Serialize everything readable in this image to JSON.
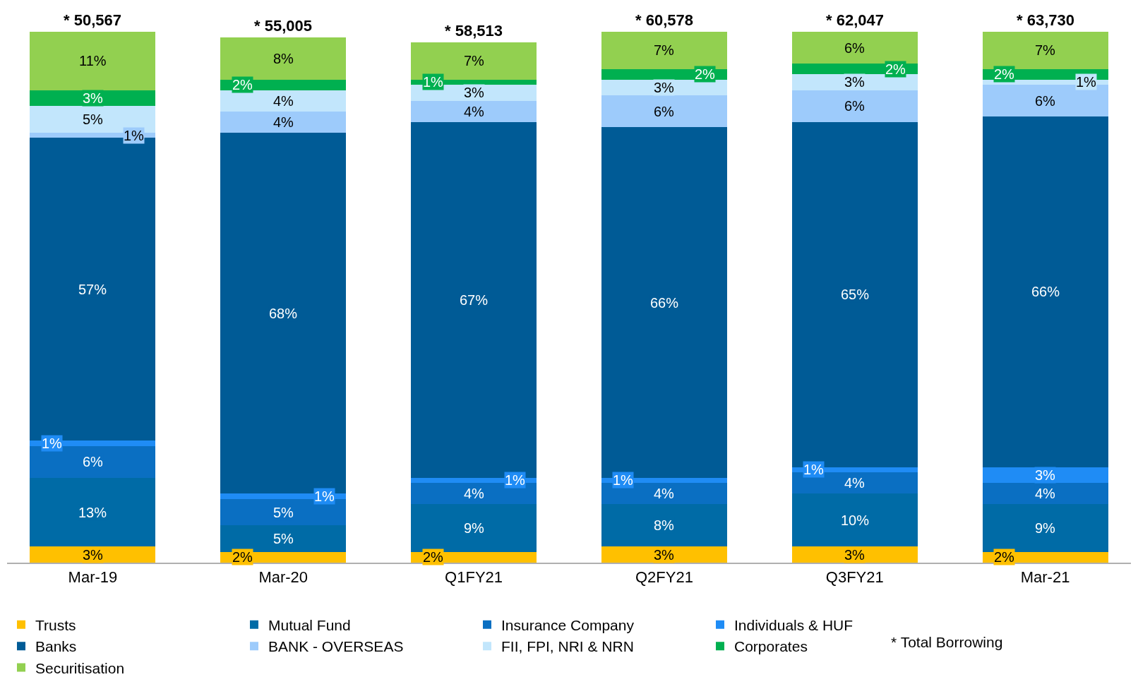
{
  "chart_data": {
    "type": "bar",
    "stacked": true,
    "categories": [
      "Mar-19",
      "Mar-20",
      "Q1FY21",
      "Q2FY21",
      "Q3FY21",
      "Mar-21"
    ],
    "series": [
      {
        "name": "Trusts",
        "color": "#ffc000",
        "values": [
          3,
          2,
          2,
          3,
          3,
          2
        ],
        "value_labels": [
          "3%",
          "2%",
          "2%",
          "3%",
          "3%",
          "2%"
        ]
      },
      {
        "name": "Mutual Fund",
        "color": "#006ba6",
        "values": [
          13,
          5,
          9,
          8,
          10,
          9
        ],
        "value_labels": [
          "13%",
          "5%",
          "9%",
          "8%",
          "10%",
          "9%"
        ]
      },
      {
        "name": "Insurance Company",
        "color": "#0a6fc2",
        "values": [
          6,
          5,
          4,
          4,
          4,
          4
        ],
        "value_labels": [
          "6%",
          "5%",
          "4%",
          "4%",
          "4%",
          "4%"
        ]
      },
      {
        "name": "Individuals & HUF",
        "color": "#1f8cf5",
        "values": [
          1,
          1,
          1,
          1,
          1,
          3
        ],
        "value_labels": [
          "1%",
          "1%",
          "1%",
          "1%",
          "1%",
          "3%"
        ]
      },
      {
        "name": "Banks",
        "color": "#005b96",
        "values": [
          57,
          68,
          67,
          66,
          65,
          66
        ],
        "value_labels": [
          "57%",
          "68%",
          "67%",
          "66%",
          "65%",
          "66%"
        ]
      },
      {
        "name": "BANK - OVERSEAS",
        "color": "#9dcbfb",
        "values": [
          1,
          4,
          4,
          6,
          6,
          6
        ],
        "value_labels": [
          "1%",
          "4%",
          "4%",
          "6%",
          "6%",
          "6%"
        ]
      },
      {
        "name": "FII, FPI, NRI & NRN",
        "color": "#c2e6fc",
        "values": [
          5,
          4,
          3,
          3,
          3,
          1
        ],
        "value_labels": [
          "5%",
          "4%",
          "3%",
          "3%",
          "3%",
          "1%"
        ]
      },
      {
        "name": "Corporates",
        "color": "#00b050",
        "values": [
          3,
          2,
          1,
          2,
          2,
          2
        ],
        "value_labels": [
          "3%",
          "2%",
          "1%",
          "2%",
          "2%",
          "2%"
        ]
      },
      {
        "name": "Securitisation",
        "color": "#92d050",
        "values": [
          11,
          8,
          7,
          7,
          6,
          7
        ],
        "value_labels": [
          "11%",
          "8%",
          "7%",
          "7%",
          "6%",
          "7%"
        ]
      }
    ],
    "annotations": [
      "* 50,567",
      "* 55,005",
      "* 58,513",
      "* 60,578",
      "* 62,047",
      "* 63,730",
      "* Total Borrowing"
    ],
    "legend": "bottom",
    "tick_labels": "x"
  }
}
